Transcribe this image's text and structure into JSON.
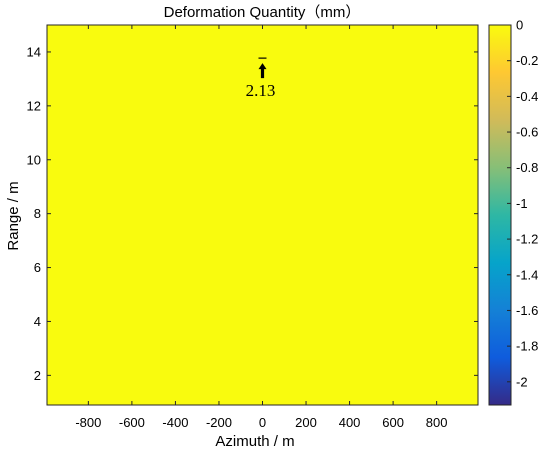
{
  "chart_data": {
    "type": "heatmap",
    "title": "Deformation Quantity（mm）",
    "xlabel": "Azimuth / m",
    "ylabel": "Range / m",
    "xlim": [
      -990,
      990
    ],
    "ylim": [
      0.9,
      15
    ],
    "xticks": [
      -800,
      -600,
      -400,
      -200,
      0,
      200,
      400,
      600,
      800
    ],
    "xtick_labels": [
      "-800",
      "-600",
      "-400",
      "-200",
      "0",
      "200",
      "400",
      "600",
      "800"
    ],
    "yticks": [
      2,
      4,
      6,
      8,
      10,
      12,
      14
    ],
    "ytick_labels": [
      "2",
      "4",
      "6",
      "8",
      "10",
      "12",
      "14"
    ],
    "field_value": 0,
    "field_color": "#f9fb0e",
    "colorbar": {
      "range": [
        -2.13,
        0
      ],
      "ticks": [
        0,
        -0.2,
        -0.4,
        -0.6,
        -0.8,
        -1,
        -1.2,
        -1.4,
        -1.6,
        -1.8,
        -2
      ],
      "tick_labels": [
        "0",
        "-0.2",
        "-0.4",
        "-0.6",
        "-0.8",
        "-1",
        "-1.2",
        "-1.4",
        "-1.6",
        "-1.8",
        "-2"
      ],
      "colormap": "parula",
      "colors": [
        "#352a87",
        "#0f5cdd",
        "#1481d6",
        "#06a4ca",
        "#2eb7a4",
        "#87bf77",
        "#d1bb59",
        "#fec832",
        "#f9fb0e"
      ]
    },
    "annotation": {
      "text": "2.13",
      "x": 0,
      "y": 13.4
    }
  }
}
